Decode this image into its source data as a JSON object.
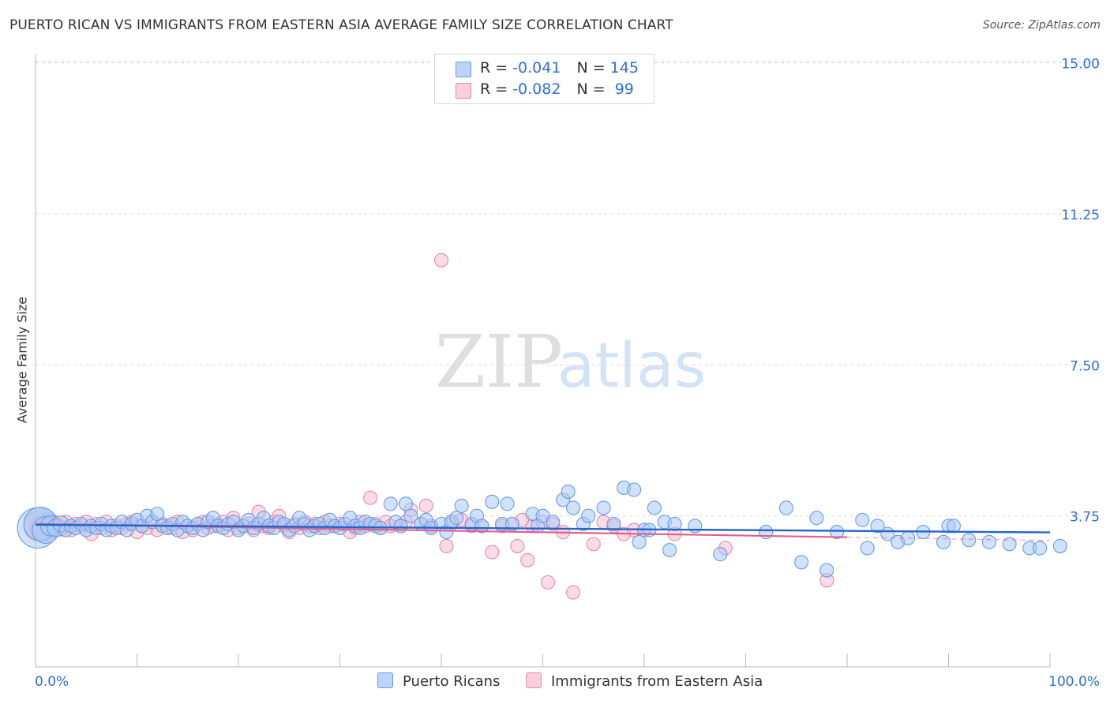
{
  "title": "PUERTO RICAN VS IMMIGRANTS FROM EASTERN ASIA AVERAGE FAMILY SIZE CORRELATION CHART",
  "source": "Source: ZipAtlas.com",
  "watermark": {
    "zip": "ZIP",
    "atlas": "atlas"
  },
  "legend_top": [
    {
      "r_label": "R = ",
      "r_value": "-0.041",
      "n_label": "N = ",
      "n_value": "145"
    },
    {
      "r_label": "R = ",
      "r_value": "-0.082",
      "n_label": "N = ",
      "n_value": " 99"
    }
  ],
  "colors": {
    "series1_fill": "#a9c8f5",
    "series1_stroke": "#6a9ce3",
    "series1_line": "#2266cc",
    "series2_fill": "#f7bfd2",
    "series2_stroke": "#e88aa9",
    "series2_line": "#e0608a",
    "grid": "#dddddd",
    "axis_label": "#2f6fd6"
  },
  "chart_data": {
    "type": "scatter",
    "title": "PUERTO RICAN VS IMMIGRANTS FROM EASTERN ASIA AVERAGE FAMILY SIZE CORRELATION CHART",
    "xlabel": "",
    "ylabel": "Average Family Size",
    "xlim": [
      0,
      100
    ],
    "ylim": [
      0,
      16
    ],
    "x_tick_labels": [
      "0.0%",
      "100.0%"
    ],
    "y_ticks": [
      3.75,
      7.5,
      11.25,
      15.0
    ],
    "y_tick_labels": [
      "3.75",
      "7.50",
      "11.25",
      "15.00"
    ],
    "grid": true,
    "legend_position": "bottom",
    "series": [
      {
        "name": "Puerto Ricans",
        "R": -0.041,
        "N": 145,
        "trend": {
          "x": [
            0,
            100
          ],
          "y": [
            3.53,
            3.34
          ]
        },
        "points": [
          [
            0.2,
            3.45,
            3
          ],
          [
            0.5,
            3.55,
            2.5
          ],
          [
            1,
            3.4,
            2
          ],
          [
            1.5,
            3.5,
            1.5
          ],
          [
            2,
            3.45,
            1.3
          ],
          [
            2.5,
            3.55,
            1.2
          ],
          [
            3,
            3.4,
            1
          ],
          [
            3.5,
            3.5,
            1
          ],
          [
            4,
            3.45,
            1
          ],
          [
            4.5,
            3.55,
            1
          ],
          [
            5,
            3.4,
            1
          ],
          [
            5.5,
            3.5,
            1
          ],
          [
            6,
            3.45,
            1
          ],
          [
            6.5,
            3.55,
            1
          ],
          [
            7,
            3.4,
            1
          ],
          [
            7.5,
            3.5,
            1
          ],
          [
            8,
            3.45,
            1
          ],
          [
            8.5,
            3.6,
            1
          ],
          [
            9,
            3.4,
            1
          ],
          [
            9.5,
            3.55,
            1
          ],
          [
            10,
            3.65,
            1
          ],
          [
            10.5,
            3.5,
            1
          ],
          [
            11,
            3.75,
            1
          ],
          [
            11.5,
            3.6,
            1
          ],
          [
            12,
            3.8,
            1
          ],
          [
            12.5,
            3.5,
            1
          ],
          [
            13,
            3.45,
            1
          ],
          [
            13.5,
            3.55,
            1
          ],
          [
            14,
            3.4,
            1
          ],
          [
            14.5,
            3.6,
            1
          ],
          [
            15,
            3.5,
            1
          ],
          [
            15.5,
            3.45,
            1
          ],
          [
            16,
            3.55,
            1
          ],
          [
            16.5,
            3.4,
            1
          ],
          [
            17,
            3.6,
            1
          ],
          [
            17.5,
            3.7,
            1
          ],
          [
            18,
            3.5,
            1
          ],
          [
            18.5,
            3.45,
            1
          ],
          [
            19,
            3.55,
            1
          ],
          [
            19.5,
            3.6,
            1
          ],
          [
            20,
            3.4,
            1
          ],
          [
            20.5,
            3.5,
            1
          ],
          [
            21,
            3.65,
            1
          ],
          [
            21.5,
            3.45,
            1
          ],
          [
            22,
            3.55,
            1
          ],
          [
            22.5,
            3.7,
            1
          ],
          [
            23,
            3.5,
            1
          ],
          [
            23.5,
            3.45,
            1
          ],
          [
            24,
            3.6,
            1
          ],
          [
            24.5,
            3.55,
            1
          ],
          [
            25,
            3.4,
            1
          ],
          [
            25.5,
            3.5,
            1
          ],
          [
            26,
            3.7,
            1
          ],
          [
            26.5,
            3.55,
            1
          ],
          [
            27,
            3.4,
            1
          ],
          [
            27.5,
            3.5,
            1
          ],
          [
            28,
            3.55,
            1
          ],
          [
            28.5,
            3.45,
            1
          ],
          [
            29,
            3.65,
            1
          ],
          [
            29.5,
            3.5,
            1
          ],
          [
            30,
            3.45,
            1
          ],
          [
            30.5,
            3.55,
            1
          ],
          [
            31,
            3.7,
            1
          ],
          [
            31.5,
            3.5,
            1
          ],
          [
            32,
            3.45,
            1
          ],
          [
            32.5,
            3.6,
            1
          ],
          [
            33,
            3.55,
            1
          ],
          [
            33.5,
            3.5,
            1
          ],
          [
            34,
            3.45,
            1
          ],
          [
            35,
            4.05,
            1
          ],
          [
            35.5,
            3.6,
            1
          ],
          [
            36,
            3.5,
            1
          ],
          [
            36.5,
            4.05,
            1
          ],
          [
            37,
            3.75,
            1
          ],
          [
            38,
            3.55,
            1
          ],
          [
            38.5,
            3.65,
            1
          ],
          [
            39,
            3.45,
            1
          ],
          [
            40,
            3.55,
            1
          ],
          [
            40.5,
            3.35,
            1
          ],
          [
            41,
            3.6,
            1
          ],
          [
            41.5,
            3.7,
            1
          ],
          [
            42,
            4.0,
            1
          ],
          [
            43,
            3.55,
            1
          ],
          [
            43.5,
            3.75,
            1
          ],
          [
            44,
            3.5,
            1
          ],
          [
            45,
            4.1,
            1
          ],
          [
            46,
            3.55,
            1
          ],
          [
            46.5,
            4.05,
            1
          ],
          [
            47,
            3.55,
            1
          ],
          [
            49,
            3.8,
            1
          ],
          [
            49.5,
            3.5,
            1
          ],
          [
            50,
            3.75,
            1
          ],
          [
            51,
            3.6,
            1
          ],
          [
            52,
            4.15,
            1
          ],
          [
            52.5,
            4.35,
            1
          ],
          [
            53,
            3.95,
            1
          ],
          [
            54,
            3.55,
            1
          ],
          [
            54.5,
            3.75,
            1
          ],
          [
            56,
            3.95,
            1
          ],
          [
            57,
            3.55,
            1
          ],
          [
            58,
            4.45,
            1
          ],
          [
            59,
            4.4,
            1
          ],
          [
            59.5,
            3.1,
            1
          ],
          [
            60,
            3.4,
            1
          ],
          [
            60.5,
            3.4,
            1
          ],
          [
            61,
            3.95,
            1
          ],
          [
            62,
            3.6,
            1
          ],
          [
            62.5,
            2.9,
            1
          ],
          [
            63,
            3.55,
            1
          ],
          [
            65,
            3.5,
            1
          ],
          [
            67.5,
            2.8,
            1
          ],
          [
            72,
            3.35,
            1
          ],
          [
            74,
            3.95,
            1
          ],
          [
            75.5,
            2.6,
            1
          ],
          [
            77,
            3.7,
            1
          ],
          [
            78,
            2.4,
            1
          ],
          [
            79,
            3.35,
            1
          ],
          [
            81.5,
            3.65,
            1
          ],
          [
            82,
            2.95,
            1
          ],
          [
            83,
            3.5,
            1
          ],
          [
            84,
            3.3,
            1
          ],
          [
            85,
            3.1,
            1
          ],
          [
            86,
            3.2,
            1
          ],
          [
            87.5,
            3.35,
            1
          ],
          [
            89.5,
            3.1,
            1
          ],
          [
            90,
            3.5,
            1
          ],
          [
            90.5,
            3.5,
            1
          ],
          [
            92,
            3.15,
            1
          ],
          [
            94,
            3.1,
            1
          ],
          [
            96,
            3.05,
            1
          ],
          [
            98,
            2.95,
            1
          ],
          [
            99,
            2.95,
            1
          ],
          [
            101,
            3.0,
            1
          ]
        ]
      },
      {
        "name": "Immigrants from Eastern Asia",
        "R": -0.082,
        "N": 99,
        "trend": {
          "x": [
            0,
            80
          ],
          "y": [
            3.55,
            3.22
          ]
        },
        "dashed_extension": {
          "x": [
            80,
            100
          ],
          "y": [
            3.22,
            3.14
          ]
        },
        "points": [
          [
            0.3,
            3.5,
            2.2
          ],
          [
            0.8,
            3.45,
            2
          ],
          [
            1.5,
            3.55,
            1.5
          ],
          [
            2,
            3.5,
            1.2
          ],
          [
            2.5,
            3.45,
            1.2
          ],
          [
            3,
            3.6,
            1
          ],
          [
            3.5,
            3.4,
            1
          ],
          [
            4,
            3.55,
            1
          ],
          [
            4.5,
            3.5,
            1
          ],
          [
            5,
            3.6,
            1
          ],
          [
            5.5,
            3.3,
            1
          ],
          [
            6,
            3.55,
            1
          ],
          [
            6.5,
            3.45,
            1
          ],
          [
            7,
            3.6,
            1
          ],
          [
            7.5,
            3.4,
            1
          ],
          [
            8,
            3.5,
            1
          ],
          [
            8.5,
            3.45,
            1
          ],
          [
            9,
            3.55,
            1
          ],
          [
            9.5,
            3.6,
            1
          ],
          [
            10,
            3.35,
            1
          ],
          [
            10.5,
            3.5,
            1
          ],
          [
            11,
            3.45,
            1
          ],
          [
            11.5,
            3.6,
            1
          ],
          [
            12,
            3.4,
            1
          ],
          [
            12.5,
            3.55,
            1
          ],
          [
            13,
            3.5,
            1
          ],
          [
            13.5,
            3.45,
            1
          ],
          [
            14,
            3.6,
            1
          ],
          [
            14.5,
            3.35,
            1
          ],
          [
            15,
            3.5,
            1
          ],
          [
            15.5,
            3.4,
            1
          ],
          [
            16,
            3.55,
            1
          ],
          [
            16.5,
            3.6,
            1
          ],
          [
            17,
            3.45,
            1
          ],
          [
            17.5,
            3.5,
            1
          ],
          [
            18,
            3.55,
            1
          ],
          [
            18.5,
            3.6,
            1
          ],
          [
            19,
            3.4,
            1
          ],
          [
            19.5,
            3.7,
            1
          ],
          [
            20,
            3.45,
            1
          ],
          [
            20.5,
            3.5,
            1
          ],
          [
            21,
            3.55,
            1
          ],
          [
            21.5,
            3.4,
            1
          ],
          [
            22,
            3.85,
            1
          ],
          [
            22.5,
            3.5,
            1
          ],
          [
            23,
            3.45,
            1
          ],
          [
            23.5,
            3.6,
            1
          ],
          [
            24,
            3.75,
            1
          ],
          [
            24.5,
            3.5,
            1
          ],
          [
            25,
            3.35,
            1
          ],
          [
            25.5,
            3.55,
            1
          ],
          [
            26,
            3.45,
            1
          ],
          [
            26.5,
            3.6,
            1
          ],
          [
            27,
            3.5,
            1
          ],
          [
            27.5,
            3.55,
            1
          ],
          [
            28,
            3.45,
            1
          ],
          [
            28.5,
            3.6,
            1
          ],
          [
            29,
            3.5,
            1
          ],
          [
            29.5,
            3.5,
            1
          ],
          [
            30,
            3.55,
            1
          ],
          [
            31,
            3.35,
            1
          ],
          [
            31.5,
            3.45,
            1
          ],
          [
            32,
            3.6,
            1
          ],
          [
            32.5,
            3.5,
            1
          ],
          [
            33,
            4.2,
            1
          ],
          [
            33.5,
            3.55,
            1
          ],
          [
            34,
            3.45,
            1
          ],
          [
            34.5,
            3.6,
            1
          ],
          [
            35,
            3.5,
            1
          ],
          [
            36,
            3.5,
            1
          ],
          [
            36.5,
            3.6,
            1
          ],
          [
            37,
            3.9,
            1
          ],
          [
            38,
            3.55,
            1
          ],
          [
            38.5,
            4.0,
            1
          ],
          [
            39,
            3.5,
            1
          ],
          [
            40,
            10.1,
            1
          ],
          [
            40.5,
            3.0,
            1
          ],
          [
            41,
            3.55,
            1
          ],
          [
            42,
            3.65,
            1
          ],
          [
            43,
            3.5,
            1
          ],
          [
            44,
            3.5,
            1
          ],
          [
            45,
            2.85,
            1
          ],
          [
            46,
            3.5,
            1
          ],
          [
            47,
            3.55,
            1
          ],
          [
            47.5,
            3.0,
            1
          ],
          [
            48,
            3.65,
            1
          ],
          [
            48.5,
            2.65,
            1
          ],
          [
            49,
            3.5,
            1
          ],
          [
            50,
            3.6,
            1
          ],
          [
            50.5,
            2.1,
            1
          ],
          [
            51,
            3.55,
            1
          ],
          [
            52,
            3.35,
            1
          ],
          [
            53,
            1.85,
            1
          ],
          [
            55,
            3.05,
            1
          ],
          [
            56,
            3.6,
            1
          ],
          [
            57,
            3.5,
            1
          ],
          [
            58,
            3.3,
            1
          ],
          [
            59,
            3.4,
            1
          ],
          [
            63,
            3.3,
            1
          ],
          [
            68,
            2.95,
            1
          ],
          [
            78,
            2.15,
            1
          ]
        ]
      }
    ]
  }
}
